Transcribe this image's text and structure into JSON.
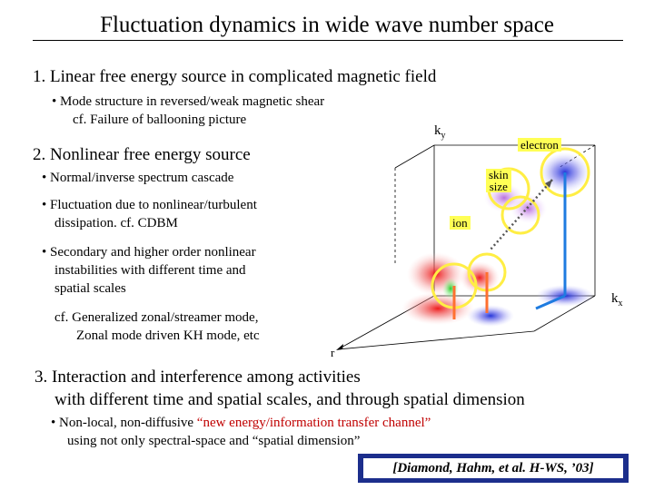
{
  "title": "Fluctuation dynamics in wide wave number space",
  "section1": {
    "heading": "1. Linear free energy source in complicated magnetic field",
    "bullet": "• Mode structure in reversed/weak magnetic shear",
    "sub": "cf. Failure of ballooning picture"
  },
  "section2": {
    "heading": "2. Nonlinear free energy source",
    "bullets": [
      "• Normal/inverse spectrum cascade",
      "• Fluctuation due to nonlinear/turbulent",
      "dissipation. cf. CDBM",
      "• Secondary and higher order nonlinear",
      "instabilities with different time and",
      "spatial scales"
    ],
    "cf_line1": "cf. Generalized zonal/streamer mode,",
    "cf_line2": "Zonal mode driven KH mode, etc"
  },
  "section3": {
    "heading_line1": "3. Interaction and interference among activities",
    "heading_line2": "with different time and spatial scales, and through spatial dimension",
    "bullet_prefix": "•  Non-local, non-diffusive ",
    "bullet_highlight": "“new energy/information transfer channel”",
    "bullet_line2": "using not only spectral-space and “spatial dimension”"
  },
  "citation": "[Diamond, Hahm, et al. H-WS, ’03]",
  "figure": {
    "axis_ky": "k",
    "axis_ky_sub": "y",
    "axis_kx": "k",
    "axis_kx_sub": "x",
    "axis_r": "r",
    "label_electron": "electron",
    "label_skin": "skin",
    "label_size": "size",
    "label_ion": "ion"
  },
  "colors": {
    "citation_box": "#1c2e8c",
    "highlight": "#c00000",
    "label_bg": "#ffff55",
    "ring": "#ffee44"
  }
}
